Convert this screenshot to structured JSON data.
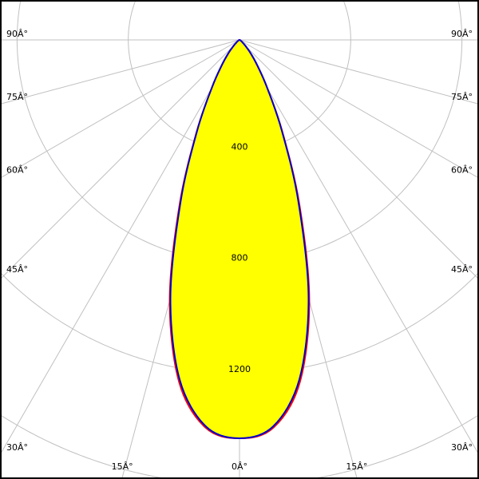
{
  "chart_data": {
    "type": "polar",
    "title": "",
    "angle_unit_labels": [
      "90Â°",
      "75Â°",
      "60Â°",
      "45Â°",
      "30Â°",
      "15Â°",
      "0Â°",
      "15Â°",
      "30Â°",
      "45Â°",
      "60Â°",
      "75Â°",
      "90Â°"
    ],
    "radial_ticks": [
      400,
      800,
      1200
    ],
    "radial_tick_labels": [
      "400",
      "800",
      "1200"
    ],
    "rmax_grid": 1600,
    "angles_deg": [
      0,
      5,
      10,
      15,
      20,
      25,
      30,
      35,
      40,
      45,
      50,
      60,
      70,
      80,
      90
    ],
    "series": [
      {
        "color": "#ff0000",
        "values": [
          1433,
          1400,
          1250,
          970,
          630,
          365,
          200,
          110,
          60,
          30,
          15,
          5,
          2,
          1,
          0
        ]
      },
      {
        "color": "#0000cc",
        "values": [
          1433,
          1395,
          1240,
          960,
          620,
          360,
          200,
          112,
          62,
          31,
          15,
          5,
          2,
          1,
          0
        ]
      }
    ],
    "fill_color": "#ffff00",
    "grid": true,
    "grid_color": "#c0c0c0"
  }
}
